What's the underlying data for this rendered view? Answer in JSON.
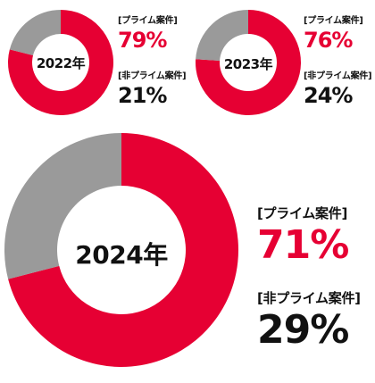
{
  "colors": {
    "prime": "#e60033",
    "non_prime": "#9a9a9a"
  },
  "chart_data": [
    {
      "type": "pie",
      "title": "2022年",
      "categories": [
        "[プライム案件]",
        "[非プライム案件]"
      ],
      "values": [
        79,
        21
      ],
      "value_labels": [
        "79%",
        "21%"
      ]
    },
    {
      "type": "pie",
      "title": "2023年",
      "categories": [
        "[プライム案件]",
        "[非プライム案件]"
      ],
      "values": [
        76,
        24
      ],
      "value_labels": [
        "76%",
        "24%"
      ]
    },
    {
      "type": "pie",
      "title": "2024年",
      "categories": [
        "[プライム案件]",
        "[非プライム案件]"
      ],
      "values": [
        71,
        29
      ],
      "value_labels": [
        "71%",
        "29%"
      ]
    }
  ]
}
